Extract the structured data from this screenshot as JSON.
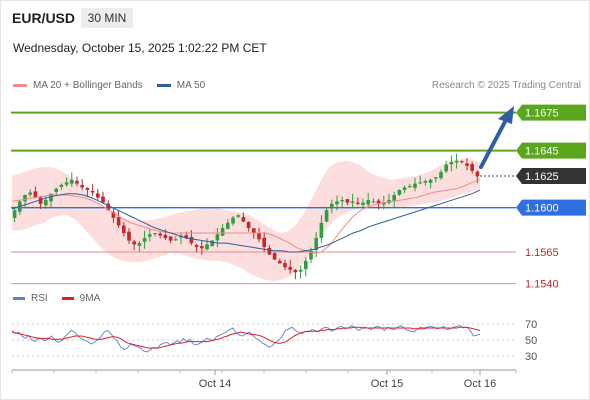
{
  "header": {
    "symbol": "EUR/USD",
    "timeframe": "30 MIN",
    "datetime": "Wednesday, October 15, 2025 1:02:22 PM CET",
    "credit": "Research © 2025 Trading Central"
  },
  "legend": {
    "bollinger": {
      "label": "MA 20 + Bollinger Bands",
      "color": "#f28b8b"
    },
    "ma50": {
      "label": "MA 50",
      "color": "#2f5f9e"
    }
  },
  "rsi_legend": {
    "rsi": {
      "label": "RSI",
      "color": "#5b7fd6"
    },
    "ma9": {
      "label": "9MA",
      "color": "#e02020"
    }
  },
  "colors": {
    "up_candle": "#2e9e3e",
    "down_candle": "#c62828",
    "resistance_green": "#5aa61c",
    "pivot_blue": "#2f6fe0",
    "support_red": "#e88a8a",
    "support_label": "#c62828",
    "arrow": "#2f5f9e",
    "current": "#333333"
  },
  "chart_data": [
    {
      "type": "line",
      "title": "EUR/USD",
      "timeframe": "30 MIN",
      "x_ticks": [
        "Oct 14",
        "Oct 15",
        "Oct 16"
      ],
      "ylim": [
        1.1535,
        1.1685
      ],
      "levels": [
        {
          "value": 1.1675,
          "label": "1.1675",
          "kind": "resistance"
        },
        {
          "value": 1.1645,
          "label": "1.1645",
          "kind": "resistance"
        },
        {
          "value": 1.1625,
          "label": "1.1625",
          "kind": "current"
        },
        {
          "value": 1.16,
          "label": "1.1600",
          "kind": "pivot"
        },
        {
          "value": 1.1565,
          "label": "1.1565",
          "kind": "support"
        },
        {
          "value": 1.154,
          "label": "1.1540",
          "kind": "support"
        }
      ],
      "series": [
        {
          "name": "MA 20 + Bollinger Bands"
        },
        {
          "name": "MA 50"
        }
      ],
      "close": [
        1.1598,
        1.1605,
        1.161,
        1.1612,
        1.1608,
        1.1603,
        1.1606,
        1.1611,
        1.1615,
        1.1618,
        1.162,
        1.1622,
        1.1619,
        1.1616,
        1.1614,
        1.1612,
        1.1608,
        1.1604,
        1.1598,
        1.1592,
        1.1586,
        1.158,
        1.1574,
        1.1571,
        1.1572,
        1.1576,
        1.1579,
        1.158,
        1.1578,
        1.1576,
        1.1574,
        1.1575,
        1.1578,
        1.1576,
        1.1572,
        1.1569,
        1.1568,
        1.1571,
        1.1574,
        1.1579,
        1.1584,
        1.1588,
        1.1592,
        1.1594,
        1.1589,
        1.1584,
        1.158,
        1.1575,
        1.1569,
        1.1563,
        1.1559,
        1.1556,
        1.1553,
        1.1551,
        1.1549,
        1.1551,
        1.1558,
        1.1566,
        1.1576,
        1.1588,
        1.1598,
        1.1603,
        1.1605,
        1.1606,
        1.1604,
        1.1605,
        1.1603,
        1.1604,
        1.1606,
        1.1605,
        1.1603,
        1.1604,
        1.1606,
        1.161,
        1.1614,
        1.1616,
        1.1617,
        1.1619,
        1.162,
        1.1621,
        1.1622,
        1.1624,
        1.1628,
        1.1634,
        1.1636,
        1.1637,
        1.1636,
        1.1633,
        1.1629,
        1.1625
      ],
      "bb_mid": [
        1.1605,
        1.1606,
        1.1607,
        1.1608,
        1.1609,
        1.161,
        1.161,
        1.161,
        1.1609,
        1.1608,
        1.1606,
        1.1603,
        1.1599,
        1.1595,
        1.1591,
        1.1588,
        1.1586,
        1.1584,
        1.1582,
        1.1581,
        1.158,
        1.158,
        1.158,
        1.158,
        1.158,
        1.158,
        1.158,
        1.158,
        1.158,
        1.158,
        1.158,
        1.158,
        1.158,
        1.1578,
        1.1575,
        1.1572,
        1.1568,
        1.1566,
        1.1564,
        1.1565,
        1.157,
        1.1578,
        1.1586,
        1.1593,
        1.1598,
        1.1601,
        1.1603,
        1.1604,
        1.1605,
        1.1606,
        1.1607,
        1.1608,
        1.161,
        1.1612,
        1.1613,
        1.1614,
        1.1615,
        1.1617,
        1.162,
        1.1622
      ],
      "bb_upper": [
        1.1625,
        1.1627,
        1.1629,
        1.1631,
        1.1632,
        1.1632,
        1.163,
        1.1626,
        1.162,
        1.1614,
        1.1608,
        1.1602,
        1.1598,
        1.1595,
        1.1592,
        1.159,
        1.159,
        1.159,
        1.1591,
        1.1592,
        1.1594,
        1.1596,
        1.1597,
        1.1598,
        1.16,
        1.16,
        1.16,
        1.1598,
        1.1597,
        1.1596,
        1.1594,
        1.159,
        1.1586,
        1.1582,
        1.158,
        1.1582,
        1.1588,
        1.1598,
        1.161,
        1.1622,
        1.1632,
        1.1636,
        1.1637,
        1.1636,
        1.1633,
        1.1628,
        1.1625,
        1.1623,
        1.1622,
        1.1623,
        1.1624,
        1.1625,
        1.1627,
        1.163,
        1.1633,
        1.1636,
        1.1638,
        1.1639,
        1.1638,
        1.1636
      ],
      "bb_lower": [
        1.1582,
        1.1582,
        1.1584,
        1.1586,
        1.1588,
        1.1592,
        1.1594,
        1.1594,
        1.159,
        1.1584,
        1.1577,
        1.157,
        1.1564,
        1.156,
        1.1558,
        1.1557,
        1.1557,
        1.1558,
        1.156,
        1.1562,
        1.1564,
        1.1564,
        1.1562,
        1.156,
        1.1559,
        1.1558,
        1.1558,
        1.1557,
        1.1555,
        1.1552,
        1.1548,
        1.1545,
        1.1543,
        1.1542,
        1.1543,
        1.1546,
        1.1551,
        1.1558,
        1.1568,
        1.1578,
        1.1586,
        1.1592,
        1.1596,
        1.1598,
        1.16,
        1.16,
        1.16,
        1.16,
        1.16,
        1.16,
        1.1601,
        1.1602,
        1.1603,
        1.1604,
        1.1605,
        1.1607,
        1.1609,
        1.1611,
        1.1613,
        1.1615
      ],
      "ma50": [
        1.1599,
        1.1601,
        1.1603,
        1.1605,
        1.1607,
        1.1609,
        1.161,
        1.1611,
        1.1611,
        1.161,
        1.1608,
        1.1605,
        1.1602,
        1.1599,
        1.1596,
        1.1593,
        1.159,
        1.1587,
        1.1584,
        1.1582,
        1.158,
        1.1578,
        1.1576,
        1.1575,
        1.1574,
        1.1573,
        1.1572,
        1.1572,
        1.1571,
        1.157,
        1.1569,
        1.1568,
        1.1567,
        1.1566,
        1.1566,
        1.1565,
        1.1565,
        1.1566,
        1.1567,
        1.1569,
        1.1571,
        1.1574,
        1.1577,
        1.158,
        1.1582,
        1.1585,
        1.1587,
        1.1589,
        1.1591,
        1.1593,
        1.1595,
        1.1597,
        1.1599,
        1.1601,
        1.1603,
        1.1605,
        1.1607,
        1.1609,
        1.1611,
        1.1614
      ]
    },
    {
      "type": "line",
      "title": "RSI",
      "y_ticks": [
        70,
        50,
        30
      ],
      "ylim": [
        20,
        80
      ],
      "series": [
        {
          "name": "RSI",
          "values": [
            62,
            58,
            60,
            55,
            52,
            56,
            50,
            48,
            53,
            51,
            49,
            52,
            55,
            50,
            47,
            49,
            54,
            58,
            62,
            60,
            55,
            52,
            50,
            48,
            45,
            47,
            50,
            54,
            60,
            62,
            58,
            52,
            48,
            41,
            38,
            40,
            45,
            43,
            42,
            40,
            36,
            35,
            38,
            41,
            39,
            44,
            46,
            47,
            44,
            46,
            49,
            47,
            52,
            48,
            51,
            45,
            44,
            46,
            48,
            52,
            51,
            49,
            54,
            56,
            58,
            60,
            63,
            65,
            59,
            56,
            55,
            58,
            60,
            56,
            52,
            50,
            46,
            44,
            41,
            43,
            47,
            50,
            55,
            62,
            64,
            66,
            62,
            60,
            58,
            61,
            60,
            63,
            62,
            60,
            64,
            66,
            65,
            61,
            63,
            66,
            67,
            64,
            65,
            68,
            66,
            62,
            64,
            66,
            65,
            63,
            66,
            67,
            65,
            62,
            66,
            64,
            63,
            66,
            68,
            65,
            62,
            61,
            60,
            64,
            66,
            65,
            66,
            67,
            66,
            64,
            65,
            67,
            63,
            64,
            66,
            67,
            68,
            65,
            66,
            62,
            55,
            56,
            57
          ]
        },
        {
          "name": "9MA",
          "values": [
            60,
            59,
            58,
            57,
            56,
            55,
            54,
            53,
            52,
            52,
            52,
            52,
            51,
            51,
            51,
            51,
            52,
            53,
            54,
            55,
            55,
            55,
            54,
            53,
            52,
            51,
            51,
            51,
            52,
            53,
            54,
            54,
            53,
            51,
            48,
            46,
            45,
            44,
            43,
            42,
            41,
            40,
            40,
            40,
            40,
            41,
            42,
            43,
            44,
            45,
            46,
            46,
            47,
            48,
            48,
            48,
            48,
            48,
            48,
            48,
            49,
            50,
            51,
            52,
            54,
            55,
            57,
            58,
            59,
            60,
            59,
            58,
            57,
            57,
            56,
            55,
            53,
            51,
            49,
            47,
            46,
            46,
            47,
            49,
            52,
            55,
            57,
            59,
            60,
            61,
            61,
            61,
            61,
            62,
            62,
            63,
            63,
            63,
            64,
            64,
            65,
            65,
            65,
            66,
            66,
            66,
            65,
            65,
            65,
            65,
            65,
            65,
            65,
            65,
            65,
            65,
            65,
            65,
            65,
            65,
            65,
            64,
            64,
            64,
            64,
            65,
            65,
            65,
            65,
            65,
            65,
            65,
            65,
            65,
            65,
            66,
            66,
            66,
            65,
            64,
            63,
            62
          ]
        }
      ]
    }
  ]
}
